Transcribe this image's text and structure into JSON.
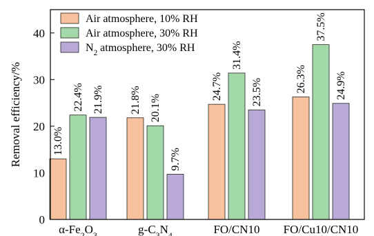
{
  "chart_data": {
    "type": "bar",
    "ylabel": "Removal efficiency/%",
    "ylim": [
      0,
      45
    ],
    "yticks": [
      0,
      10,
      20,
      30,
      40
    ],
    "categories": [
      {
        "parts": [
          {
            "t": "α-Fe"
          },
          {
            "t": "2",
            "sub": true
          },
          {
            "t": "O"
          },
          {
            "t": "3",
            "sub": true
          }
        ]
      },
      {
        "parts": [
          {
            "t": "g-C"
          },
          {
            "t": "3",
            "sub": true
          },
          {
            "t": "N"
          },
          {
            "t": "4",
            "sub": true
          }
        ]
      },
      {
        "parts": [
          {
            "t": "FO/CN10"
          }
        ]
      },
      {
        "parts": [
          {
            "t": "FO/Cu10/CN10"
          }
        ]
      }
    ],
    "series": [
      {
        "name_parts": [
          {
            "t": "Air atmosphere, 10% RH"
          }
        ],
        "color": "#f7c29d",
        "values": [
          13.0,
          21.8,
          24.7,
          26.3
        ],
        "labels": [
          "13.0%",
          "21.8%",
          "24.7%",
          "26.3%"
        ]
      },
      {
        "name_parts": [
          {
            "t": "Air atmosphere, 30% RH"
          }
        ],
        "color": "#a3d9a8",
        "values": [
          22.4,
          20.1,
          31.4,
          37.5
        ],
        "labels": [
          "22.4%",
          "20.1%",
          "31.4%",
          "37.5%"
        ]
      },
      {
        "name_parts": [
          {
            "t": "N"
          },
          {
            "t": "2",
            "sub": true
          },
          {
            "t": "  atmosphere, 30% RH"
          }
        ],
        "color": "#b9a9d6",
        "values": [
          21.9,
          9.7,
          23.5,
          24.9
        ],
        "labels": [
          "21.9%",
          "9.7%",
          "23.5%",
          "24.9%"
        ]
      }
    ],
    "legend": "top-left"
  }
}
